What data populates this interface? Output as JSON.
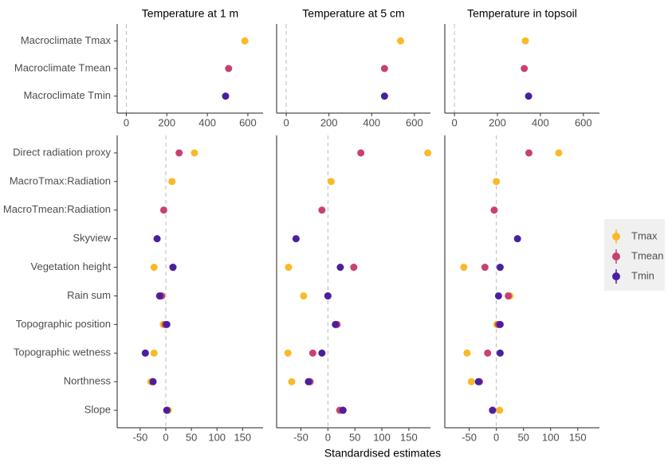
{
  "chart_data": {
    "type": "dot",
    "facets": [
      "Temperature at 1 m",
      "Temperature at 5 cm",
      "Temperature in topsoil"
    ],
    "xlabel": "Standardised estimates",
    "legend_position": "right",
    "zero_line": true,
    "series": [
      {
        "name": "Tmax",
        "color": "#f9b928"
      },
      {
        "name": "Tmean",
        "color": "#c8416f"
      },
      {
        "name": "Tmin",
        "color": "#4a1fa0"
      }
    ],
    "rows": [
      {
        "categories": [
          "Macroclimate Tmax",
          "Macroclimate Tmean",
          "Macroclimate Tmin"
        ],
        "xlim": [
          -45,
          675
        ],
        "xticks": [
          0,
          200,
          400,
          600
        ],
        "values": [
          [
            [
              585,
              null,
              null
            ],
            [
              null,
              505,
              null
            ],
            [
              null,
              null,
              490
            ]
          ],
          [
            [
              535,
              null,
              null
            ],
            [
              null,
              460,
              null
            ],
            [
              null,
              null,
              460
            ]
          ],
          [
            [
              330,
              null,
              null
            ],
            [
              null,
              325,
              null
            ],
            [
              null,
              null,
              345
            ]
          ]
        ]
      },
      {
        "categories": [
          "Direct radiation proxy",
          "MacroTmax:Radiation",
          "MacroTmean:Radiation",
          "Skyview",
          "Vegetation height",
          "Rain sum",
          "Topographic position",
          "Topographic wetness",
          "Northness",
          "Slope"
        ],
        "xlim": [
          -95,
          190
        ],
        "xticks": [
          -50,
          0,
          50,
          100,
          150
        ],
        "values": [
          [
            [
              56,
              12,
              null,
              null,
              -23,
              -12,
              -5,
              -23,
              -29,
              5
            ],
            [
              26,
              null,
              -4,
              null,
              14,
              -8,
              -1,
              -40,
              -25,
              2
            ],
            [
              null,
              null,
              null,
              -17,
              14,
              -12,
              2,
              -40,
              -25,
              2
            ]
          ],
          [
            [
              185,
              6,
              null,
              null,
              -73,
              -45,
              14,
              -74,
              -67,
              28
            ],
            [
              61,
              null,
              -11,
              null,
              48,
              0,
              17,
              -28,
              -33,
              22
            ],
            [
              null,
              null,
              null,
              -59,
              23,
              0,
              14,
              -11,
              -36,
              28
            ]
          ],
          [
            [
              115,
              0,
              null,
              null,
              -60,
              25,
              1,
              -54,
              -46,
              6
            ],
            [
              60,
              null,
              -4,
              null,
              -21,
              22,
              4,
              -16,
              -31,
              -7
            ],
            [
              null,
              null,
              null,
              39,
              7,
              4,
              7,
              7,
              -33,
              -7
            ]
          ]
        ]
      }
    ]
  }
}
